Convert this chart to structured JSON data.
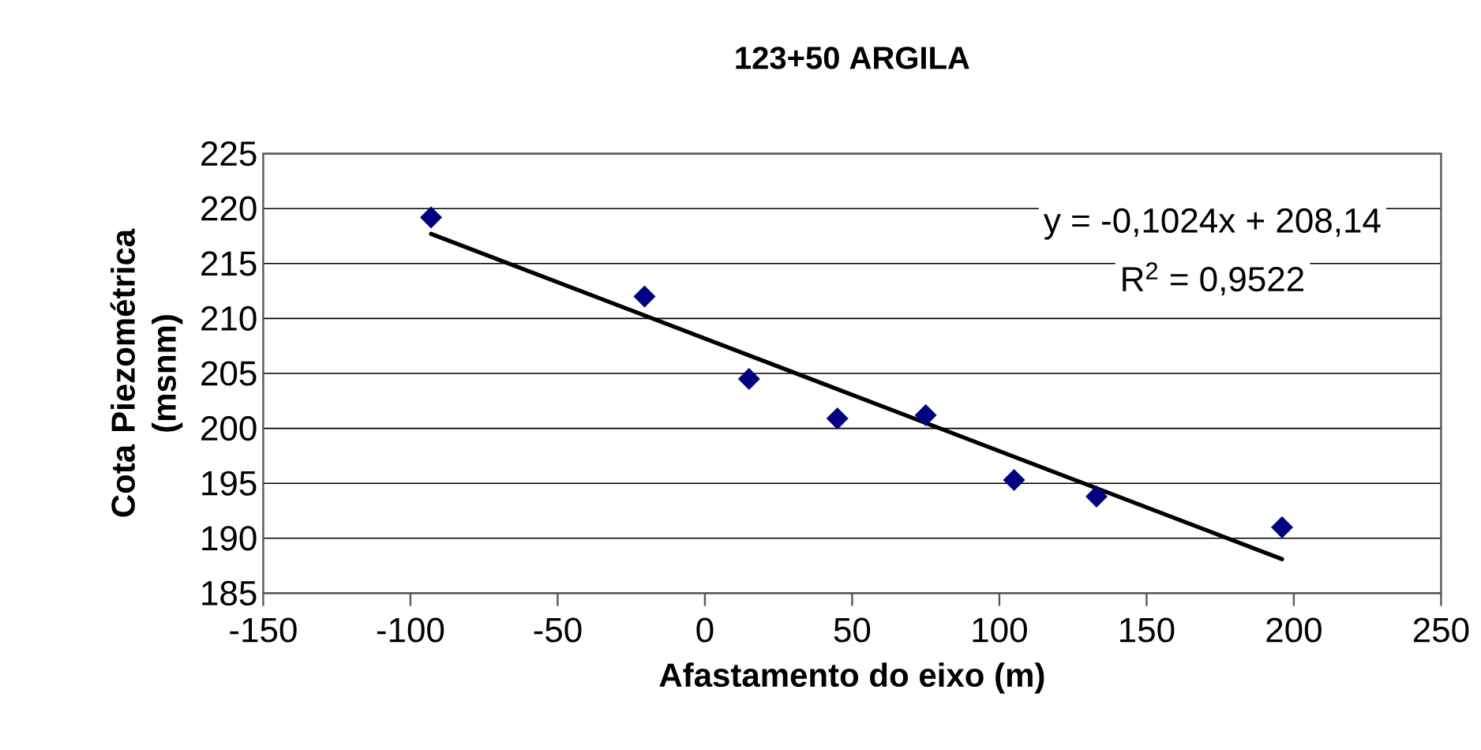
{
  "chart_data": {
    "type": "scatter",
    "title": "123+50 ARGILA",
    "xlabel": "Afastamento do eixo (m)",
    "ylabel": "Cota Piezométrica (msnm)",
    "xlim": [
      -150,
      250
    ],
    "xticks": [
      -150,
      -100,
      -50,
      0,
      50,
      100,
      150,
      200,
      250
    ],
    "ylim": [
      185,
      225
    ],
    "yticks": [
      185,
      190,
      195,
      200,
      205,
      210,
      215,
      220,
      225
    ],
    "grid": "y",
    "marker": "diamond",
    "series": [
      {
        "color": "#000080",
        "x": [
          -93,
          -20.5,
          15,
          45,
          75,
          105,
          133,
          196
        ],
        "values": [
          219.2,
          212.0,
          204.5,
          200.9,
          201.2,
          195.3,
          193.8,
          191.0
        ]
      },
      {
        "type": "line",
        "color": "#000000",
        "marker": "none",
        "line_style": "solid",
        "x": [
          -93,
          196
        ],
        "values": [
          217.7,
          188.1
        ]
      }
    ],
    "annotations": [
      "y = -0,1024x + 208,14",
      "R$^{2}$ = 0,9522"
    ]
  }
}
